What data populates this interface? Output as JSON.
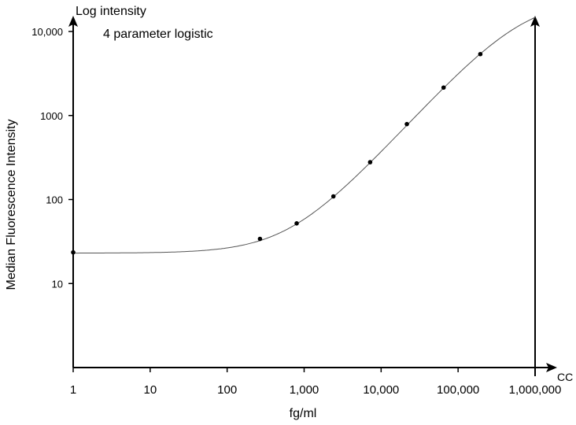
{
  "chart_data": {
    "type": "scatter",
    "title": "4 parameter logistic",
    "xlabel": "fg/ml",
    "ylabel": "Median Fluorescence Intensity",
    "y_axis_caption": "Log intensity",
    "x_axis_caption": "CC",
    "x_scale": "log",
    "y_scale": "log",
    "xlim": [
      1,
      1000000
    ],
    "ylim": [
      1,
      10000
    ],
    "x_ticks": [
      {
        "value": 1,
        "label": "1"
      },
      {
        "value": 10,
        "label": "10"
      },
      {
        "value": 100,
        "label": "100"
      },
      {
        "value": 1000,
        "label": "1,000"
      },
      {
        "value": 10000,
        "label": "10,000"
      },
      {
        "value": 100000,
        "label": "100,000"
      },
      {
        "value": 1000000,
        "label": "1,000,000"
      }
    ],
    "y_ticks": [
      {
        "value": 10,
        "label": "10"
      },
      {
        "value": 100,
        "label": "100"
      },
      {
        "value": 1000,
        "label": "1000"
      },
      {
        "value": 10000,
        "label": "10,000"
      }
    ],
    "grid": false,
    "points": [
      {
        "x": 1,
        "y": 23.5
      },
      {
        "x": 267,
        "y": 34
      },
      {
        "x": 800,
        "y": 52
      },
      {
        "x": 2400,
        "y": 109
      },
      {
        "x": 7200,
        "y": 278
      },
      {
        "x": 21600,
        "y": 790
      },
      {
        "x": 64800,
        "y": 2150
      },
      {
        "x": 194400,
        "y": 5380
      }
    ],
    "fit": {
      "model": "4 parameter logistic",
      "bottom": 23,
      "top": 25100,
      "ec50": 709000,
      "slope": 1
    },
    "colors": {
      "axis": "#000000",
      "curve": "#555555",
      "points": "#000000"
    }
  }
}
